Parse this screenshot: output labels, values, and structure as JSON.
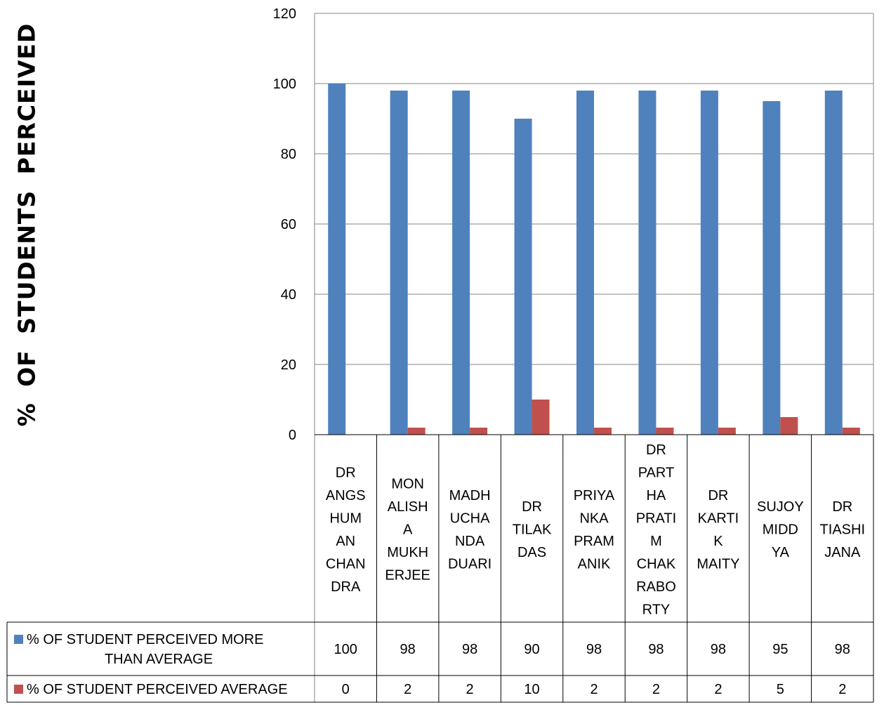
{
  "chart_data": {
    "type": "bar",
    "ylabel": "% OF STUDENTS PERCEIVED",
    "xlabel": "",
    "ylim": [
      0,
      120
    ],
    "yticks": [
      0,
      20,
      40,
      60,
      80,
      100,
      120
    ],
    "grid": true,
    "legend": "data-table",
    "categories": [
      [
        "DR",
        "ANGS",
        "HUM",
        "AN",
        "CHAN",
        "DRA"
      ],
      [
        "MON",
        "ALISH",
        "A",
        "MUKH",
        "ERJEE"
      ],
      [
        "MADH",
        "UCHA",
        "NDA",
        "DUARI"
      ],
      [
        "DR",
        "TILAK",
        "DAS"
      ],
      [
        "PRIYA",
        "NKA",
        "PRAM",
        "ANIK"
      ],
      [
        "DR",
        "PART",
        "HA",
        "PRATI",
        "M",
        "CHAK",
        "RABO",
        "RTY"
      ],
      [
        "DR",
        "KARTI",
        "K",
        "MAITY"
      ],
      [
        "SUJOY",
        "MIDD",
        "YA"
      ],
      [
        "DR",
        "TIASHI",
        "JANA"
      ]
    ],
    "series": [
      {
        "name": "% OF STUDENT PERCEIVED MORE THAN AVERAGE",
        "name_lines": [
          "% OF STUDENT PERCEIVED MORE",
          "THAN AVERAGE"
        ],
        "color": "#4F81BD",
        "values": [
          100,
          98,
          98,
          90,
          98,
          98,
          98,
          95,
          98
        ]
      },
      {
        "name": "% OF STUDENT PERCEIVED AVERAGE",
        "name_lines": [
          "% OF STUDENT PERCEIVED AVERAGE"
        ],
        "color": "#C0504D",
        "values": [
          0,
          2,
          2,
          10,
          2,
          2,
          2,
          5,
          2
        ]
      }
    ]
  }
}
